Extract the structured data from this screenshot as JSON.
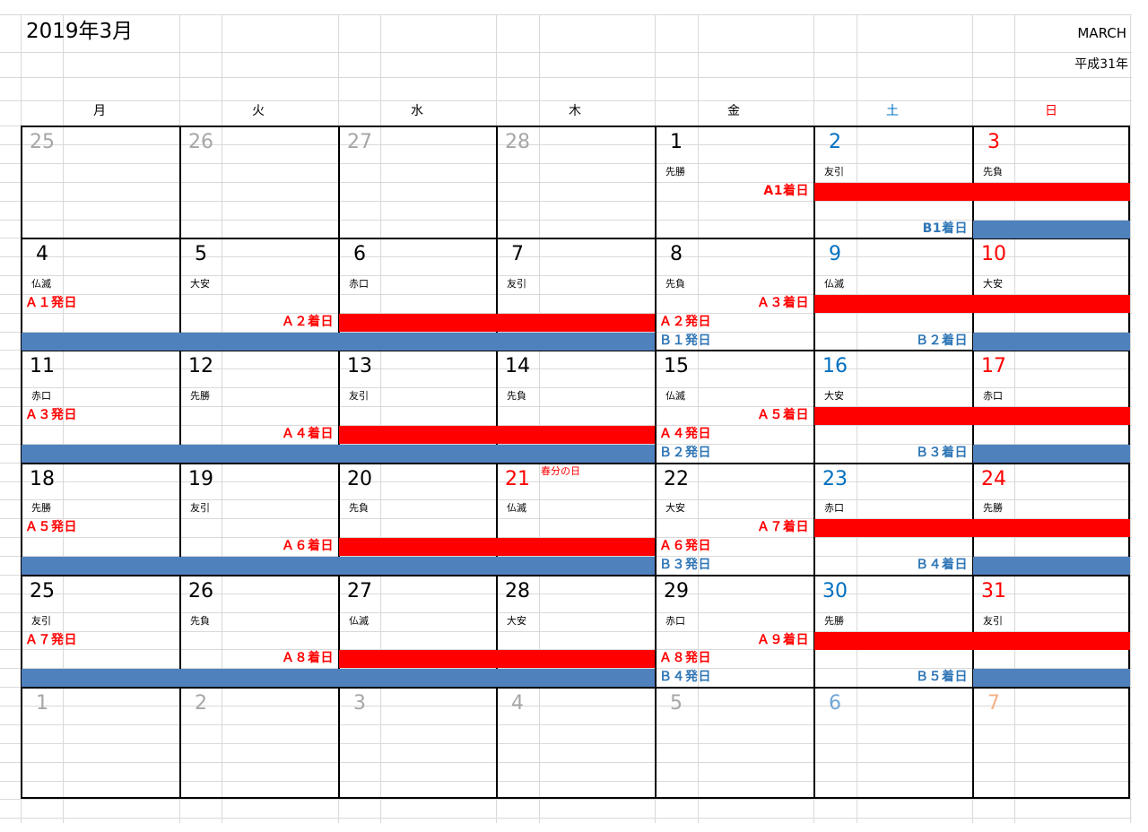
{
  "header": {
    "title": "2019年3月",
    "month_en": "MARCH",
    "era": "平成31年"
  },
  "weekdays": [
    "月",
    "火",
    "水",
    "木",
    "金",
    "土",
    "日"
  ],
  "colors": {
    "saturday": "#0070c0",
    "sunday": "#ff0000",
    "bar_red": "#ff0000",
    "bar_blue": "#4f81bd",
    "event_red": "#ff0000",
    "event_blue": "#2e75b6",
    "outside_month": "#a6a6a6"
  },
  "weeks": [
    {
      "days": [
        {
          "n": "25",
          "c": "gray"
        },
        {
          "n": "26",
          "c": "gray"
        },
        {
          "n": "27",
          "c": "gray"
        },
        {
          "n": "28",
          "c": "gray"
        },
        {
          "n": "1",
          "c": "black",
          "r": "先勝"
        },
        {
          "n": "2",
          "c": "blue",
          "r": "友引"
        },
        {
          "n": "3",
          "c": "red",
          "r": "先負"
        }
      ],
      "bars": [
        {
          "row": 3,
          "from": 5,
          "to": 6,
          "color": "red"
        },
        {
          "row": 5,
          "from": 6,
          "to": 6,
          "color": "blue"
        }
      ],
      "events": [
        {
          "row": 3,
          "col": 4,
          "align": "right",
          "text": "A1着日",
          "color": "red"
        },
        {
          "row": 5,
          "col": 5,
          "align": "right",
          "text": "B1着日",
          "color": "blue"
        }
      ]
    },
    {
      "days": [
        {
          "n": "4",
          "c": "black",
          "r": "仏滅"
        },
        {
          "n": "5",
          "c": "black",
          "r": "大安"
        },
        {
          "n": "6",
          "c": "black",
          "r": "赤口"
        },
        {
          "n": "7",
          "c": "black",
          "r": "友引"
        },
        {
          "n": "8",
          "c": "black",
          "r": "先負"
        },
        {
          "n": "9",
          "c": "blue",
          "r": "仏滅"
        },
        {
          "n": "10",
          "c": "red",
          "r": "大安"
        }
      ],
      "bars": [
        {
          "row": 4,
          "from": 2,
          "to": 3,
          "color": "red"
        },
        {
          "row": 5,
          "from": 0,
          "to": 3,
          "color": "blue"
        },
        {
          "row": 3,
          "from": 5,
          "to": 6,
          "color": "red"
        },
        {
          "row": 5,
          "from": 6,
          "to": 6,
          "color": "blue"
        }
      ],
      "events": [
        {
          "row": 3,
          "col": 0,
          "align": "left",
          "text": "Ａ１発日",
          "color": "red"
        },
        {
          "row": 4,
          "col": 1,
          "align": "right",
          "text": "Ａ２着日",
          "color": "red"
        },
        {
          "row": 3,
          "col": 4,
          "align": "right",
          "text": "Ａ３着日",
          "color": "red"
        },
        {
          "row": 4,
          "col": 4,
          "align": "left",
          "text": "Ａ２発日",
          "color": "red"
        },
        {
          "row": 5,
          "col": 4,
          "align": "left",
          "text": "Ｂ１発日",
          "color": "blue"
        },
        {
          "row": 5,
          "col": 5,
          "align": "right",
          "text": "Ｂ２着日",
          "color": "blue"
        }
      ]
    },
    {
      "days": [
        {
          "n": "11",
          "c": "black",
          "r": "赤口"
        },
        {
          "n": "12",
          "c": "black",
          "r": "先勝"
        },
        {
          "n": "13",
          "c": "black",
          "r": "友引"
        },
        {
          "n": "14",
          "c": "black",
          "r": "先負"
        },
        {
          "n": "15",
          "c": "black",
          "r": "仏滅"
        },
        {
          "n": "16",
          "c": "blue",
          "r": "大安"
        },
        {
          "n": "17",
          "c": "red",
          "r": "赤口"
        }
      ],
      "bars": [
        {
          "row": 4,
          "from": 2,
          "to": 3,
          "color": "red"
        },
        {
          "row": 5,
          "from": 0,
          "to": 3,
          "color": "blue"
        },
        {
          "row": 3,
          "from": 5,
          "to": 6,
          "color": "red"
        },
        {
          "row": 5,
          "from": 6,
          "to": 6,
          "color": "blue"
        }
      ],
      "events": [
        {
          "row": 3,
          "col": 0,
          "align": "left",
          "text": "Ａ３発日",
          "color": "red"
        },
        {
          "row": 4,
          "col": 1,
          "align": "right",
          "text": "Ａ４着日",
          "color": "red"
        },
        {
          "row": 3,
          "col": 4,
          "align": "right",
          "text": "Ａ５着日",
          "color": "red"
        },
        {
          "row": 4,
          "col": 4,
          "align": "left",
          "text": "Ａ４発日",
          "color": "red"
        },
        {
          "row": 5,
          "col": 4,
          "align": "left",
          "text": "Ｂ２発日",
          "color": "blue"
        },
        {
          "row": 5,
          "col": 5,
          "align": "right",
          "text": "Ｂ３着日",
          "color": "blue"
        }
      ]
    },
    {
      "days": [
        {
          "n": "18",
          "c": "black",
          "r": "先勝"
        },
        {
          "n": "19",
          "c": "black",
          "r": "友引"
        },
        {
          "n": "20",
          "c": "black",
          "r": "先負"
        },
        {
          "n": "21",
          "c": "red",
          "r": "仏滅",
          "h": "春分の日"
        },
        {
          "n": "22",
          "c": "black",
          "r": "大安"
        },
        {
          "n": "23",
          "c": "blue",
          "r": "赤口"
        },
        {
          "n": "24",
          "c": "red",
          "r": "先勝"
        }
      ],
      "bars": [
        {
          "row": 4,
          "from": 2,
          "to": 3,
          "color": "red"
        },
        {
          "row": 5,
          "from": 0,
          "to": 3,
          "color": "blue"
        },
        {
          "row": 3,
          "from": 5,
          "to": 6,
          "color": "red"
        },
        {
          "row": 5,
          "from": 6,
          "to": 6,
          "color": "blue"
        }
      ],
      "events": [
        {
          "row": 3,
          "col": 0,
          "align": "left",
          "text": "Ａ５発日",
          "color": "red"
        },
        {
          "row": 4,
          "col": 1,
          "align": "right",
          "text": "Ａ６着日",
          "color": "red"
        },
        {
          "row": 3,
          "col": 4,
          "align": "right",
          "text": "Ａ７着日",
          "color": "red"
        },
        {
          "row": 4,
          "col": 4,
          "align": "left",
          "text": "Ａ６発日",
          "color": "red"
        },
        {
          "row": 5,
          "col": 4,
          "align": "left",
          "text": "Ｂ３発日",
          "color": "blue"
        },
        {
          "row": 5,
          "col": 5,
          "align": "right",
          "text": "Ｂ４着日",
          "color": "blue"
        }
      ]
    },
    {
      "days": [
        {
          "n": "25",
          "c": "black",
          "r": "友引"
        },
        {
          "n": "26",
          "c": "black",
          "r": "先負"
        },
        {
          "n": "27",
          "c": "black",
          "r": "仏滅"
        },
        {
          "n": "28",
          "c": "black",
          "r": "大安"
        },
        {
          "n": "29",
          "c": "black",
          "r": "赤口"
        },
        {
          "n": "30",
          "c": "blue",
          "r": "先勝"
        },
        {
          "n": "31",
          "c": "red",
          "r": "友引"
        }
      ],
      "bars": [
        {
          "row": 4,
          "from": 2,
          "to": 3,
          "color": "red"
        },
        {
          "row": 5,
          "from": 0,
          "to": 3,
          "color": "blue"
        },
        {
          "row": 3,
          "from": 5,
          "to": 6,
          "color": "red"
        },
        {
          "row": 5,
          "from": 6,
          "to": 6,
          "color": "blue"
        }
      ],
      "events": [
        {
          "row": 3,
          "col": 0,
          "align": "left",
          "text": "Ａ７発日",
          "color": "red"
        },
        {
          "row": 4,
          "col": 1,
          "align": "right",
          "text": "Ａ８着日",
          "color": "red"
        },
        {
          "row": 3,
          "col": 4,
          "align": "right",
          "text": "Ａ９着日",
          "color": "red"
        },
        {
          "row": 4,
          "col": 4,
          "align": "left",
          "text": "Ａ８発日",
          "color": "red"
        },
        {
          "row": 5,
          "col": 4,
          "align": "left",
          "text": "Ｂ４発日",
          "color": "blue"
        },
        {
          "row": 5,
          "col": 5,
          "align": "right",
          "text": "Ｂ５着日",
          "color": "blue"
        }
      ]
    },
    {
      "days": [
        {
          "n": "1",
          "c": "gray"
        },
        {
          "n": "2",
          "c": "gray"
        },
        {
          "n": "3",
          "c": "gray"
        },
        {
          "n": "4",
          "c": "gray"
        },
        {
          "n": "5",
          "c": "gray"
        },
        {
          "n": "6",
          "c": "lblue"
        },
        {
          "n": "7",
          "c": "orange"
        }
      ],
      "bars": [],
      "events": []
    }
  ]
}
